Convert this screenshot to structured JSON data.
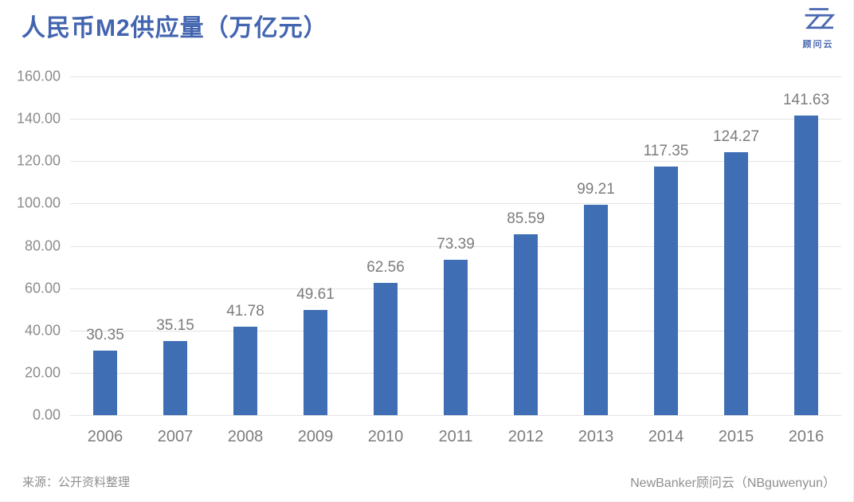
{
  "title": "人民币M2供应量（万亿元）",
  "logo": {
    "brand": "顾问云",
    "icon": "cloud-zz-logo",
    "color": "#4a67b0"
  },
  "chart_data": {
    "type": "bar",
    "title": "人民币M2供应量（万亿元）",
    "categories": [
      "2006",
      "2007",
      "2008",
      "2009",
      "2010",
      "2011",
      "2012",
      "2013",
      "2014",
      "2015",
      "2016"
    ],
    "values": [
      30.35,
      35.15,
      41.78,
      49.61,
      62.56,
      73.39,
      85.59,
      99.21,
      117.35,
      124.27,
      141.63
    ],
    "value_labels": [
      "30.35",
      "35.15",
      "41.78",
      "49.61",
      "62.56",
      "73.39",
      "85.59",
      "99.21",
      "117.35",
      "124.27",
      "141.63"
    ],
    "xlabel": "",
    "ylabel": "",
    "ylim": [
      0,
      160
    ],
    "ytick_step": 20,
    "yticks": [
      "0.00",
      "20.00",
      "40.00",
      "60.00",
      "80.00",
      "100.00",
      "120.00",
      "140.00",
      "160.00"
    ],
    "grid": true,
    "legend": "none",
    "bar_color": "#3f6eb5",
    "grid_color": "#e3e3e3",
    "axis_text_color": "#8c8c8c",
    "label_text_color": "#7c7c7c"
  },
  "footer": {
    "source": "来源：公开资料整理",
    "credit": "NewBanker顾问云（NBguwenyun）"
  },
  "colors": {
    "title": "#4365b0",
    "bar": "#3f6eb5"
  }
}
